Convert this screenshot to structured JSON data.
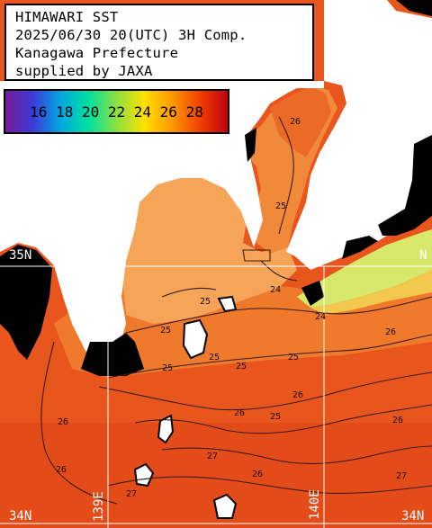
{
  "title": {
    "line1": "HIMAWARI SST",
    "line2": "2025/06/30 20(UTC) 3H Comp.",
    "line3": "Kanagawa Prefecture",
    "line4": "supplied by JAXA"
  },
  "legend": {
    "labels": "16 18 20 22 24 26 28",
    "colors": [
      "#7a1a9a",
      "#3a3ad8",
      "#00a8e0",
      "#00e0a0",
      "#8ce040",
      "#ffe000",
      "#ff9800",
      "#f04000",
      "#c00010"
    ]
  },
  "grid": {
    "lat_35n": "35N",
    "lat_35n_right": "N",
    "lat_34n_left": "34N",
    "lat_34n_right": "34N",
    "lon_139e": "139E",
    "lon_140e": "140E"
  },
  "contours": {
    "labels": [
      "26",
      "25",
      "25",
      "25",
      "25",
      "25",
      "24",
      "25",
      "26",
      "24",
      "25",
      "26",
      "25",
      "26",
      "26",
      "26",
      "26",
      "27",
      "27",
      "27",
      "26"
    ]
  },
  "colors": {
    "land": "#ffffff",
    "missing": "#000000",
    "sea_warm": "#e8561e",
    "sea_mid": "#f08030",
    "bay": "#f5a55a",
    "cool_coast": "#d8ec6a",
    "gridline": "#ffffff"
  }
}
